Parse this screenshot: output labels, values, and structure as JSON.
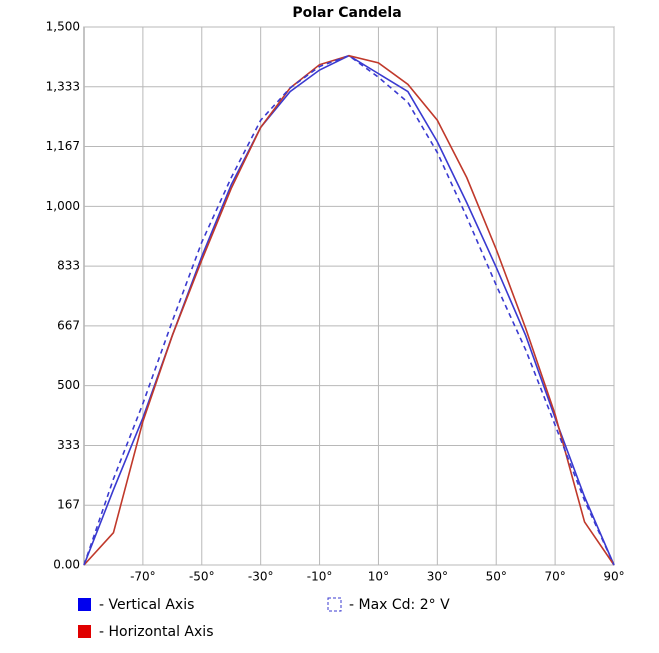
{
  "chart_data": {
    "type": "line",
    "title": "Polar Candela",
    "x": [
      -90,
      -80,
      -70,
      -60,
      -50,
      -40,
      -30,
      -20,
      -10,
      0,
      10,
      20,
      30,
      40,
      50,
      60,
      70,
      80,
      90
    ],
    "series": [
      {
        "name": "- Vertical Axis",
        "color": "#3a3ad0",
        "dashed": false,
        "values": [
          0,
          210,
          410,
          640,
          860,
          1060,
          1220,
          1320,
          1380,
          1420,
          1370,
          1320,
          1180,
          1010,
          830,
          640,
          410,
          190,
          0
        ]
      },
      {
        "name": "- Horizontal Axis",
        "color": "#c0392b",
        "dashed": false,
        "values": [
          0,
          90,
          400,
          640,
          850,
          1050,
          1220,
          1330,
          1395,
          1420,
          1400,
          1340,
          1240,
          1080,
          880,
          660,
          420,
          120,
          0
        ]
      },
      {
        "name": "- Max Cd: 2° V",
        "color": "#3a3ad0",
        "dashed": true,
        "values": [
          0,
          240,
          450,
          680,
          900,
          1080,
          1240,
          1330,
          1390,
          1420,
          1360,
          1290,
          1150,
          970,
          780,
          600,
          390,
          180,
          0
        ]
      }
    ],
    "xlim": [
      -90,
      90
    ],
    "xticks": [
      {
        "value": -70,
        "label": "-70°"
      },
      {
        "value": -50,
        "label": "-50°"
      },
      {
        "value": -30,
        "label": "-30°"
      },
      {
        "value": -10,
        "label": "-10°"
      },
      {
        "value": 10,
        "label": "10°"
      },
      {
        "value": 30,
        "label": "30°"
      },
      {
        "value": 50,
        "label": "50°"
      },
      {
        "value": 70,
        "label": "70°"
      },
      {
        "value": 90,
        "label": "90°"
      }
    ],
    "ylim": [
      0,
      1500
    ],
    "yticks": [
      {
        "value": 0,
        "label": "0.00"
      },
      {
        "value": 166.67,
        "label": "167"
      },
      {
        "value": 333.33,
        "label": "333"
      },
      500,
      {
        "value": 666.67,
        "label": "667"
      },
      {
        "value": 833.33,
        "label": "833"
      },
      {
        "value": 1000,
        "label": "1,000"
      },
      {
        "value": 1166.67,
        "label": "1,167"
      },
      {
        "value": 1333.33,
        "label": "1,333"
      },
      {
        "value": 1500,
        "label": "1,500"
      }
    ],
    "grid": true
  }
}
